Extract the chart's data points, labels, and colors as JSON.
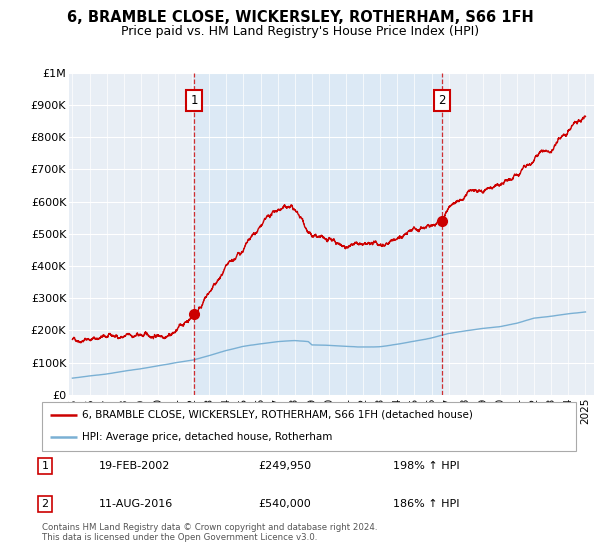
{
  "title": "6, BRAMBLE CLOSE, WICKERSLEY, ROTHERHAM, S66 1FH",
  "subtitle": "Price paid vs. HM Land Registry's House Price Index (HPI)",
  "title_fontsize": 10.5,
  "subtitle_fontsize": 9,
  "ylim": [
    0,
    1000000
  ],
  "yticks": [
    0,
    100000,
    200000,
    300000,
    400000,
    500000,
    600000,
    700000,
    800000,
    900000,
    1000000
  ],
  "ytick_labels": [
    "£0",
    "£100K",
    "£200K",
    "£300K",
    "£400K",
    "£500K",
    "£600K",
    "£700K",
    "£800K",
    "£900K",
    "£1M"
  ],
  "xlim_start": 1994.8,
  "xlim_end": 2025.5,
  "xticks": [
    1995,
    1996,
    1997,
    1998,
    1999,
    2000,
    2001,
    2002,
    2003,
    2004,
    2005,
    2006,
    2007,
    2008,
    2009,
    2010,
    2011,
    2012,
    2013,
    2014,
    2015,
    2016,
    2017,
    2018,
    2019,
    2020,
    2021,
    2022,
    2023,
    2024,
    2025
  ],
  "red_color": "#cc0000",
  "blue_color": "#7ab0d4",
  "shade_color": "#dce9f5",
  "sale1_x": 2002.12,
  "sale1_y": 249950,
  "sale2_x": 2016.62,
  "sale2_y": 540000,
  "legend_line1": "6, BRAMBLE CLOSE, WICKERSLEY, ROTHERHAM, S66 1FH (detached house)",
  "legend_line2": "HPI: Average price, detached house, Rotherham",
  "table_row1": [
    "1",
    "19-FEB-2002",
    "£249,950",
    "198% ↑ HPI"
  ],
  "table_row2": [
    "2",
    "11-AUG-2016",
    "£540,000",
    "186% ↑ HPI"
  ],
  "footer": "Contains HM Land Registry data © Crown copyright and database right 2024.\nThis data is licensed under the Open Government Licence v3.0.",
  "background_color": "#ffffff",
  "plot_bg_color": "#e8eef5"
}
